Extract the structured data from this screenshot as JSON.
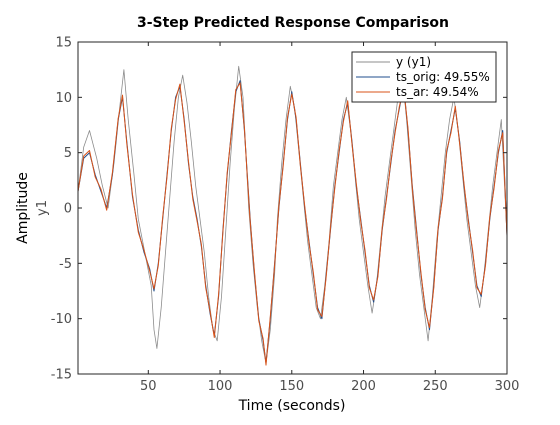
{
  "chart_data": {
    "type": "line",
    "title": "3-Step Predicted Response Comparison",
    "xlabel": "Time (seconds)",
    "ylabel": "Amplitude",
    "ysublabel": "y1",
    "xlim": [
      1,
      300
    ],
    "ylim": [
      -15,
      15
    ],
    "xticks": [
      50,
      100,
      150,
      200,
      250,
      300
    ],
    "yticks": [
      -15,
      -10,
      -5,
      0,
      5,
      10,
      15
    ],
    "grid": false,
    "legend_position": "top-right",
    "series": [
      {
        "name": "y (y1)",
        "color": "#8c8c8c",
        "points": [
          [
            1,
            1.5
          ],
          [
            5,
            5.5
          ],
          [
            9,
            7
          ],
          [
            14,
            4.5
          ],
          [
            18,
            2
          ],
          [
            22,
            0
          ],
          [
            26,
            4
          ],
          [
            30,
            9
          ],
          [
            33,
            12.5
          ],
          [
            36,
            8
          ],
          [
            40,
            3
          ],
          [
            43,
            -1
          ],
          [
            46,
            -3
          ],
          [
            49,
            -5
          ],
          [
            52,
            -7
          ],
          [
            54,
            -11
          ],
          [
            56,
            -12.7
          ],
          [
            59,
            -9
          ],
          [
            62,
            -4
          ],
          [
            65,
            1
          ],
          [
            68,
            6
          ],
          [
            71,
            10
          ],
          [
            74,
            12
          ],
          [
            77,
            9.5
          ],
          [
            80,
            6
          ],
          [
            83,
            2
          ],
          [
            86,
            -1
          ],
          [
            89,
            -4
          ],
          [
            92,
            -8
          ],
          [
            95,
            -11
          ],
          [
            98,
            -12
          ],
          [
            101,
            -8
          ],
          [
            104,
            -2
          ],
          [
            107,
            4
          ],
          [
            110,
            9
          ],
          [
            113,
            12.8
          ],
          [
            116,
            10
          ],
          [
            118,
            5
          ],
          [
            120,
            0
          ],
          [
            123,
            -5
          ],
          [
            126,
            -9
          ],
          [
            129,
            -12
          ],
          [
            132,
            -14
          ],
          [
            135,
            -11
          ],
          [
            138,
            -6
          ],
          [
            140,
            -1
          ],
          [
            143,
            4
          ],
          [
            146,
            8
          ],
          [
            149,
            11
          ],
          [
            152,
            9
          ],
          [
            155,
            5
          ],
          [
            158,
            1
          ],
          [
            161,
            -3
          ],
          [
            164,
            -6
          ],
          [
            167,
            -9
          ],
          [
            170,
            -10
          ],
          [
            173,
            -7
          ],
          [
            176,
            -3
          ],
          [
            179,
            2
          ],
          [
            182,
            5
          ],
          [
            185,
            8
          ],
          [
            188,
            10
          ],
          [
            191,
            7
          ],
          [
            194,
            3
          ],
          [
            197,
            -1
          ],
          [
            200,
            -4
          ],
          [
            203,
            -7
          ],
          [
            206,
            -9.5
          ],
          [
            209,
            -7
          ],
          [
            212,
            -3
          ],
          [
            215,
            1
          ],
          [
            218,
            4
          ],
          [
            221,
            7
          ],
          [
            224,
            10
          ],
          [
            227,
            12
          ],
          [
            230,
            8
          ],
          [
            233,
            3
          ],
          [
            236,
            -2
          ],
          [
            239,
            -6
          ],
          [
            242,
            -9
          ],
          [
            245,
            -12
          ],
          [
            248,
            -8
          ],
          [
            251,
            -3
          ],
          [
            254,
            1
          ],
          [
            257,
            5
          ],
          [
            260,
            8
          ],
          [
            263,
            10
          ],
          [
            266,
            7
          ],
          [
            269,
            3
          ],
          [
            272,
            -1
          ],
          [
            275,
            -4
          ],
          [
            278,
            -7
          ],
          [
            281,
            -9
          ],
          [
            284,
            -6
          ],
          [
            287,
            -2
          ],
          [
            290,
            2
          ],
          [
            293,
            5
          ],
          [
            296,
            8
          ],
          [
            300,
            -2.5
          ]
        ]
      },
      {
        "name": "ts_orig: 49.55%",
        "color": "#1f4e8c",
        "points": [
          [
            1,
            1.5
          ],
          [
            5,
            4.5
          ],
          [
            9,
            5
          ],
          [
            13,
            3
          ],
          [
            17,
            1.5
          ],
          [
            21,
            0
          ],
          [
            25,
            3
          ],
          [
            29,
            8
          ],
          [
            32,
            10
          ],
          [
            35,
            6
          ],
          [
            39,
            1
          ],
          [
            43,
            -2
          ],
          [
            47,
            -4
          ],
          [
            51,
            -5.5
          ],
          [
            54,
            -7.5
          ],
          [
            57,
            -5
          ],
          [
            60,
            -1
          ],
          [
            63,
            3
          ],
          [
            66,
            7
          ],
          [
            69,
            10
          ],
          [
            72,
            11
          ],
          [
            75,
            8
          ],
          [
            78,
            4
          ],
          [
            81,
            1
          ],
          [
            84,
            -1
          ],
          [
            87,
            -3.5
          ],
          [
            90,
            -7
          ],
          [
            93,
            -9.5
          ],
          [
            96,
            -11.5
          ],
          [
            99,
            -8
          ],
          [
            102,
            -2
          ],
          [
            105,
            3
          ],
          [
            108,
            7
          ],
          [
            111,
            10.5
          ],
          [
            114,
            11.5
          ],
          [
            117,
            7
          ],
          [
            119,
            3
          ],
          [
            121,
            -1
          ],
          [
            124,
            -6
          ],
          [
            127,
            -10
          ],
          [
            130,
            -12
          ],
          [
            132,
            -14
          ],
          [
            135,
            -10
          ],
          [
            138,
            -5
          ],
          [
            141,
            0
          ],
          [
            144,
            4
          ],
          [
            147,
            8
          ],
          [
            150,
            10.5
          ],
          [
            153,
            8
          ],
          [
            156,
            4
          ],
          [
            159,
            0
          ],
          [
            162,
            -3
          ],
          [
            165,
            -6
          ],
          [
            168,
            -9
          ],
          [
            171,
            -10
          ],
          [
            174,
            -6
          ],
          [
            177,
            -2
          ],
          [
            180,
            2
          ],
          [
            183,
            5
          ],
          [
            186,
            8
          ],
          [
            189,
            9.5
          ],
          [
            192,
            6
          ],
          [
            195,
            2
          ],
          [
            198,
            -1
          ],
          [
            201,
            -4
          ],
          [
            204,
            -7
          ],
          [
            207,
            -8.5
          ],
          [
            210,
            -6
          ],
          [
            213,
            -2
          ],
          [
            216,
            1
          ],
          [
            219,
            4
          ],
          [
            222,
            7
          ],
          [
            225,
            9
          ],
          [
            228,
            11
          ],
          [
            231,
            7
          ],
          [
            234,
            2
          ],
          [
            237,
            -2
          ],
          [
            240,
            -6
          ],
          [
            243,
            -9
          ],
          [
            246,
            -11
          ],
          [
            249,
            -7
          ],
          [
            252,
            -2
          ],
          [
            255,
            1
          ],
          [
            258,
            5
          ],
          [
            261,
            7
          ],
          [
            264,
            9
          ],
          [
            267,
            6
          ],
          [
            270,
            2
          ],
          [
            273,
            -1
          ],
          [
            276,
            -4
          ],
          [
            279,
            -7
          ],
          [
            282,
            -8
          ],
          [
            285,
            -5
          ],
          [
            288,
            -1
          ],
          [
            291,
            2
          ],
          [
            294,
            5
          ],
          [
            297,
            7
          ],
          [
            300,
            -2.5
          ]
        ]
      },
      {
        "name": "ts_ar: 49.54%",
        "color": "#d95319",
        "points": [
          [
            1,
            1.5
          ],
          [
            5,
            4.7
          ],
          [
            9,
            5.2
          ],
          [
            13,
            2.8
          ],
          [
            17,
            1.7
          ],
          [
            21,
            -0.2
          ],
          [
            25,
            3.2
          ],
          [
            29,
            8.1
          ],
          [
            32,
            10.2
          ],
          [
            35,
            5.8
          ],
          [
            39,
            1.2
          ],
          [
            43,
            -2.2
          ],
          [
            47,
            -3.8
          ],
          [
            51,
            -5.7
          ],
          [
            54,
            -7.3
          ],
          [
            57,
            -5.2
          ],
          [
            60,
            -0.8
          ],
          [
            63,
            2.8
          ],
          [
            66,
            7.2
          ],
          [
            69,
            9.8
          ],
          [
            72,
            11.2
          ],
          [
            75,
            7.8
          ],
          [
            78,
            4.2
          ],
          [
            81,
            0.8
          ],
          [
            84,
            -1.2
          ],
          [
            87,
            -3.3
          ],
          [
            90,
            -7.2
          ],
          [
            93,
            -9.3
          ],
          [
            96,
            -11.7
          ],
          [
            99,
            -7.8
          ],
          [
            102,
            -2.2
          ],
          [
            105,
            3.2
          ],
          [
            108,
            6.8
          ],
          [
            111,
            10.7
          ],
          [
            114,
            11.3
          ],
          [
            117,
            7.2
          ],
          [
            119,
            2.8
          ],
          [
            121,
            -1.2
          ],
          [
            124,
            -5.8
          ],
          [
            127,
            -10.2
          ],
          [
            130,
            -11.8
          ],
          [
            132,
            -14.2
          ],
          [
            135,
            -9.8
          ],
          [
            138,
            -5.2
          ],
          [
            141,
            0.2
          ],
          [
            144,
            3.8
          ],
          [
            147,
            8.2
          ],
          [
            150,
            10.3
          ],
          [
            153,
            8.2
          ],
          [
            156,
            3.8
          ],
          [
            159,
            0.2
          ],
          [
            162,
            -3.2
          ],
          [
            165,
            -5.8
          ],
          [
            168,
            -9.2
          ],
          [
            171,
            -9.8
          ],
          [
            174,
            -6.2
          ],
          [
            177,
            -1.8
          ],
          [
            180,
            1.8
          ],
          [
            183,
            5.2
          ],
          [
            186,
            7.8
          ],
          [
            189,
            9.7
          ],
          [
            192,
            5.8
          ],
          [
            195,
            2.2
          ],
          [
            198,
            -1.2
          ],
          [
            201,
            -3.8
          ],
          [
            204,
            -7.2
          ],
          [
            207,
            -8.3
          ],
          [
            210,
            -6.2
          ],
          [
            213,
            -1.8
          ],
          [
            216,
            0.8
          ],
          [
            219,
            4.2
          ],
          [
            222,
            6.8
          ],
          [
            225,
            9.2
          ],
          [
            228,
            10.8
          ],
          [
            231,
            7.2
          ],
          [
            234,
            1.8
          ],
          [
            237,
            -2.2
          ],
          [
            240,
            -5.8
          ],
          [
            243,
            -9.2
          ],
          [
            246,
            -10.8
          ],
          [
            249,
            -7.2
          ],
          [
            252,
            -1.8
          ],
          [
            255,
            0.8
          ],
          [
            258,
            5.2
          ],
          [
            261,
            6.8
          ],
          [
            264,
            9.2
          ],
          [
            267,
            5.8
          ],
          [
            270,
            2.2
          ],
          [
            273,
            -1.2
          ],
          [
            276,
            -3.8
          ],
          [
            279,
            -7.2
          ],
          [
            282,
            -7.8
          ],
          [
            285,
            -5.2
          ],
          [
            288,
            -0.8
          ],
          [
            291,
            1.8
          ],
          [
            294,
            5.2
          ],
          [
            297,
            6.8
          ],
          [
            300,
            -2.5
          ]
        ]
      }
    ]
  }
}
